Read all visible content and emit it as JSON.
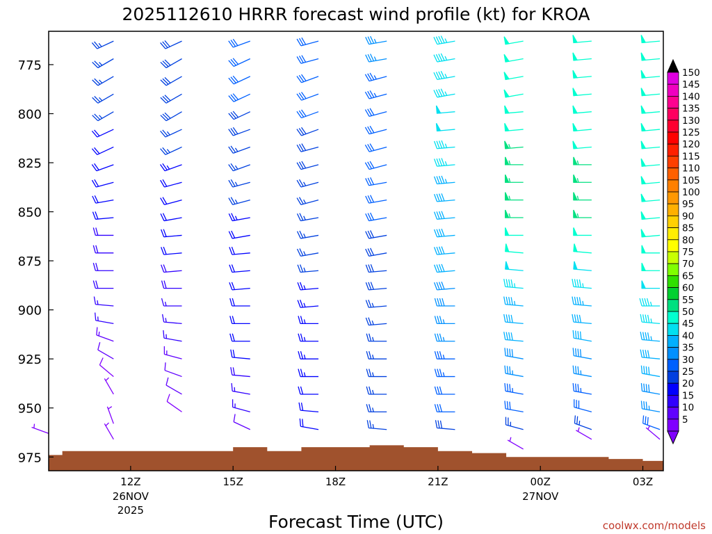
{
  "chart_data": {
    "type": "wind_barb_profile",
    "title": "2025112610 HRRR forecast wind profile (kt) for KROA",
    "xlabel": "Forecast Time (UTC)",
    "ylabel": "",
    "credit": "coolwx.com/models",
    "pressure_levels_label_ticks": [
      "775",
      "800",
      "825",
      "850",
      "875",
      "900",
      "925",
      "950",
      "975"
    ],
    "x_ticks": [
      {
        "label": "12Z",
        "sub1": "26NOV",
        "sub2": "2025",
        "hour": 12
      },
      {
        "label": "15Z",
        "sub1": "",
        "sub2": "",
        "hour": 15
      },
      {
        "label": "18Z",
        "sub1": "",
        "sub2": "",
        "hour": 18
      },
      {
        "label": "21Z",
        "sub1": "",
        "sub2": "",
        "hour": 21
      },
      {
        "label": "00Z",
        "sub1": "27NOV",
        "sub2": "",
        "hour": 24
      },
      {
        "label": "03Z",
        "sub1": "",
        "sub2": "",
        "hour": 27
      }
    ],
    "x_range_hours": [
      9.6,
      27.6
    ],
    "y_range_hpa": [
      758,
      982
    ],
    "colorbar": {
      "labels": [
        "150",
        "145",
        "140",
        "135",
        "130",
        "125",
        "120",
        "115",
        "110",
        "105",
        "100",
        "95",
        "90",
        "85",
        "80",
        "75",
        "70",
        "65",
        "60",
        "55",
        "50",
        "45",
        "40",
        "35",
        "30",
        "25",
        "20",
        "15",
        "10",
        "5"
      ],
      "colors": [
        "#e000e0",
        "#f000c0",
        "#ff0090",
        "#ff0060",
        "#ff0030",
        "#ff0000",
        "#ff2000",
        "#ff4000",
        "#ff6000",
        "#ff8000",
        "#ff9800",
        "#ffb000",
        "#ffd000",
        "#ffee00",
        "#ffff00",
        "#c8ff00",
        "#80ff00",
        "#30e000",
        "#00d030",
        "#00e080",
        "#00ffd0",
        "#00e0f0",
        "#00b0ff",
        "#0090ff",
        "#0060ff",
        "#0040e0",
        "#0000ff",
        "#3000ff",
        "#6000ff",
        "#8000ff"
      ],
      "top_color": "#000000",
      "bottom_color": "#8000ff"
    },
    "terrain_color": "#a0522d",
    "terrain": [
      {
        "t": 9.6,
        "p": 974
      },
      {
        "t": 10.0,
        "p": 972
      },
      {
        "t": 11.0,
        "p": 972
      },
      {
        "t": 12.0,
        "p": 972
      },
      {
        "t": 13.0,
        "p": 972
      },
      {
        "t": 14.0,
        "p": 972
      },
      {
        "t": 15.0,
        "p": 970
      },
      {
        "t": 16.0,
        "p": 972
      },
      {
        "t": 17.0,
        "p": 970
      },
      {
        "t": 18.0,
        "p": 970
      },
      {
        "t": 19.0,
        "p": 969
      },
      {
        "t": 20.0,
        "p": 970
      },
      {
        "t": 21.0,
        "p": 972
      },
      {
        "t": 22.0,
        "p": 973
      },
      {
        "t": 23.0,
        "p": 975
      },
      {
        "t": 24.0,
        "p": 975
      },
      {
        "t": 25.0,
        "p": 975
      },
      {
        "t": 26.0,
        "p": 976
      },
      {
        "t": 27.0,
        "p": 977
      },
      {
        "t": 27.6,
        "p": 977
      }
    ],
    "levels": [
      763,
      772,
      781,
      790,
      799,
      808,
      817,
      826,
      835,
      844,
      853,
      862,
      871,
      880,
      889,
      898,
      907,
      916,
      925,
      934,
      943,
      952,
      961
    ],
    "series": [
      {
        "hour": 9.6,
        "dirs": [],
        "speeds": [],
        "extra": [
          {
            "p": 963,
            "dir": 290,
            "spd": 5
          }
        ]
      },
      {
        "hour": 11.5,
        "dirs": [
          245,
          240,
          240,
          240,
          240,
          245,
          245,
          250,
          255,
          260,
          265,
          270,
          270,
          270,
          270,
          275,
          280,
          290,
          300,
          310,
          330
        ],
        "speeds": [
          25,
          25,
          25,
          25,
          25,
          22,
          22,
          20,
          20,
          20,
          20,
          18,
          18,
          18,
          18,
          16,
          15,
          13,
          10,
          8,
          6
        ],
        "extra": [
          {
            "p": 958,
            "dir": 340,
            "spd": 5
          },
          {
            "p": 966,
            "dir": 330,
            "spd": 5
          }
        ]
      },
      {
        "hour": 13.5,
        "dirs": [
          245,
          240,
          240,
          240,
          240,
          245,
          245,
          250,
          255,
          255,
          260,
          265,
          265,
          265,
          270,
          270,
          275,
          280,
          285,
          290,
          300,
          305
        ],
        "speeds": [
          28,
          28,
          28,
          28,
          28,
          25,
          25,
          24,
          22,
          22,
          20,
          20,
          20,
          18,
          18,
          17,
          17,
          15,
          14,
          12,
          10,
          8
        ],
        "extra": []
      },
      {
        "hour": 15.5,
        "dirs": [
          250,
          245,
          245,
          245,
          245,
          250,
          250,
          250,
          255,
          255,
          260,
          260,
          265,
          265,
          265,
          270,
          270,
          270,
          275,
          275,
          280,
          285,
          295
        ],
        "speeds": [
          30,
          30,
          30,
          30,
          28,
          28,
          27,
          27,
          25,
          25,
          24,
          22,
          22,
          22,
          20,
          20,
          20,
          20,
          20,
          18,
          17,
          15,
          12
        ],
        "extra": []
      },
      {
        "hour": 17.5,
        "dirs": [
          255,
          255,
          250,
          250,
          250,
          250,
          255,
          255,
          255,
          255,
          260,
          260,
          260,
          265,
          265,
          265,
          270,
          270,
          270,
          270,
          270,
          275,
          280
        ],
        "speeds": [
          32,
          32,
          30,
          30,
          30,
          28,
          28,
          28,
          27,
          27,
          26,
          25,
          25,
          25,
          24,
          24,
          24,
          24,
          23,
          23,
          22,
          22,
          20
        ],
        "extra": []
      },
      {
        "hour": 19.5,
        "dirs": [
          260,
          260,
          255,
          255,
          255,
          255,
          255,
          255,
          260,
          260,
          260,
          260,
          260,
          265,
          265,
          265,
          265,
          270,
          270,
          270,
          270,
          270,
          275
        ],
        "speeds": [
          35,
          35,
          33,
          33,
          32,
          30,
          30,
          30,
          30,
          30,
          30,
          28,
          28,
          28,
          28,
          27,
          27,
          27,
          26,
          26,
          25,
          25,
          25
        ],
        "extra": []
      },
      {
        "hour": 21.5,
        "dirs": [
          260,
          260,
          260,
          260,
          265,
          265,
          265,
          265,
          265,
          265,
          265,
          265,
          265,
          265,
          265,
          270,
          270,
          270,
          270,
          270,
          270,
          270,
          275
        ],
        "speeds": [
          45,
          45,
          45,
          45,
          48,
          48,
          45,
          45,
          43,
          42,
          42,
          40,
          40,
          40,
          38,
          38,
          36,
          35,
          34,
          33,
          32,
          30,
          28
        ],
        "extra": []
      },
      {
        "hour": 23.5,
        "dirs": [
          260,
          260,
          260,
          260,
          265,
          265,
          265,
          270,
          270,
          270,
          270,
          270,
          275,
          275,
          275,
          275,
          275,
          275,
          280,
          280,
          280,
          280,
          285
        ],
        "speeds": [
          50,
          50,
          50,
          50,
          50,
          50,
          55,
          55,
          55,
          55,
          55,
          52,
          50,
          48,
          45,
          43,
          42,
          40,
          38,
          36,
          34,
          30,
          25
        ],
        "extra": [
          {
            "p": 971,
            "dir": 300,
            "spd": 5
          }
        ]
      },
      {
        "hour": 25.5,
        "dirs": [
          265,
          265,
          265,
          265,
          265,
          265,
          265,
          270,
          270,
          270,
          270,
          270,
          275,
          275,
          275,
          275,
          275,
          280,
          280,
          280,
          280,
          285,
          290
        ],
        "speeds": [
          50,
          50,
          50,
          50,
          50,
          50,
          50,
          55,
          55,
          55,
          55,
          52,
          50,
          48,
          45,
          43,
          42,
          40,
          38,
          36,
          34,
          30,
          25
        ],
        "extra": [
          {
            "p": 966,
            "dir": 300,
            "spd": 5
          }
        ]
      },
      {
        "hour": 27.5,
        "dirs": [
          265,
          265,
          265,
          265,
          265,
          265,
          265,
          265,
          265,
          265,
          265,
          265,
          270,
          270,
          270,
          270,
          275,
          275,
          275,
          280,
          280,
          280,
          290
        ],
        "speeds": [
          50,
          50,
          50,
          50,
          50,
          50,
          50,
          50,
          50,
          50,
          50,
          50,
          50,
          50,
          48,
          46,
          45,
          43,
          42,
          40,
          38,
          35,
          30
        ],
        "extra": [
          {
            "p": 966,
            "dir": 310,
            "spd": 5
          }
        ]
      }
    ]
  }
}
